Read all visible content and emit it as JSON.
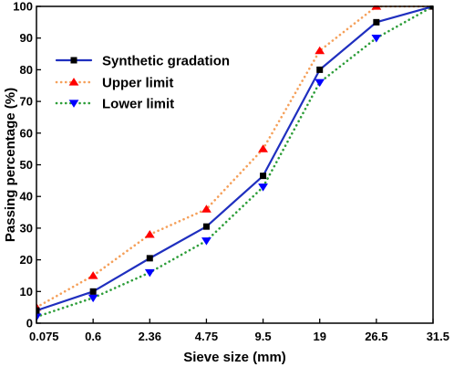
{
  "chart_data": {
    "type": "line",
    "title": "",
    "xlabel": "Sieve size (mm)",
    "ylabel": "Passing percentage (%)",
    "categories": [
      "0.075",
      "0.6",
      "2.36",
      "4.75",
      "9.5",
      "19",
      "26.5",
      "31.5"
    ],
    "ylim": [
      0,
      100
    ],
    "yticks": [
      "0",
      "10",
      "20",
      "30",
      "40",
      "50",
      "60",
      "70",
      "80",
      "90",
      "100"
    ],
    "grid": false,
    "legend_position": "top-left",
    "series": [
      {
        "name": "Synthetic gradation",
        "values": [
          4,
          10,
          20.5,
          30.5,
          46.5,
          80,
          95,
          100
        ],
        "color": "#1f2fbf",
        "line_style": "solid",
        "marker": "square",
        "marker_color": "#000000"
      },
      {
        "name": "Upper limit",
        "values": [
          5,
          15,
          28,
          36,
          55,
          86,
          100,
          100
        ],
        "color": "#f5a05a",
        "line_style": "dotted",
        "marker": "triangle-up",
        "marker_color": "#ff0000"
      },
      {
        "name": "Lower limit",
        "values": [
          2,
          8,
          16,
          26,
          43,
          76,
          90,
          100
        ],
        "color": "#2e9e3a",
        "line_style": "dotted",
        "marker": "triangle-down",
        "marker_color": "#0000ff"
      }
    ]
  }
}
